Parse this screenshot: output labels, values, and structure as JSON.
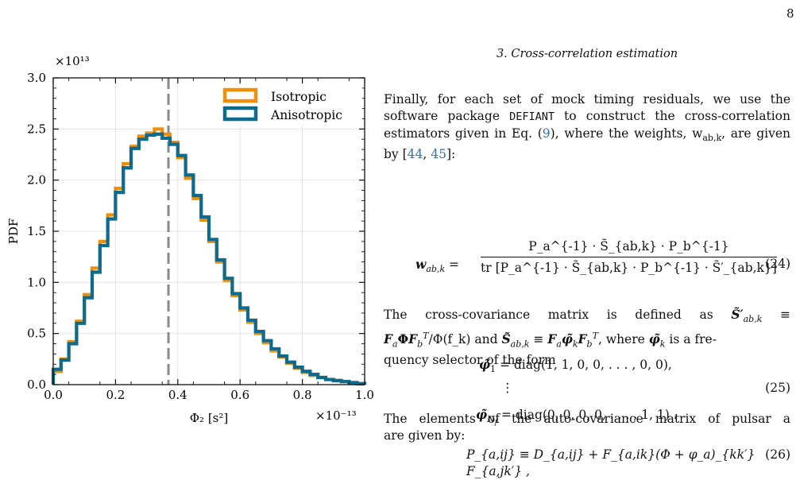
{
  "page_number": "8",
  "section_title": "3.   Cross-correlation estimation",
  "para1": {
    "text_a": "Finally, for each set of mock timing residuals, we use the software package ",
    "code": "DEFIANT",
    "text_b": " to construct the cross-correlation estimators given in Eq. (",
    "eq_ref": "9",
    "text_c": "), where the weights, w",
    "weights_sub": "ab,k",
    "text_d": ", are given by [",
    "cite1": "44",
    "cite2": "45",
    "text_e": "]:"
  },
  "eq24": {
    "lhs": "w",
    "lhs_sub": "ab,k",
    "numerator": "P_a^{-1} · S̃_{ab,k} · P_b^{-1}",
    "denominator": "tr [P_a^{-1} · S̃_{ab,k} · P_b^{-1} · S̃′_{ab,k}]",
    "number": "(24)"
  },
  "para2": {
    "line1": "The cross-covariance matrix is defined as",
    "line2_a": "Φ(f_k) and",
    "line2_b": "where",
    "line2_c": "is a fre-",
    "line3": "quency selector of the form"
  },
  "eq25": {
    "line1": "diag(1, 1, 0, 0, . . . , 0, 0),",
    "line2": "⋮",
    "line3": "diag(0, 0, 0, 0, . . . , 1, 1) .",
    "number": "(25)"
  },
  "para3": {
    "line1": "The elements of the auto-covariance matrix of pulsar a",
    "line2": "are given by:"
  },
  "eq26": {
    "body": "P_{a,ij} ≡ D_{a,ij} + F_{a,ik}(Φ + φ_a)_{kk′} F_{a,jk′} ,",
    "number": "(26)"
  },
  "chart_data": {
    "type": "line",
    "xlabel": "Φ₂ [s²]",
    "ylabel": "PDF",
    "x_multiplier": "×10⁻¹³",
    "y_multiplier": "×10¹³",
    "xlim": [
      0.0,
      1.0
    ],
    "ylim": [
      0.0,
      3.0
    ],
    "x_ticks": [
      "0.0",
      "0.2",
      "0.4",
      "0.6",
      "0.8",
      "1.0"
    ],
    "y_ticks": [
      "0.0",
      "0.5",
      "1.0",
      "1.5",
      "2.0",
      "2.5",
      "3.0"
    ],
    "grid": true,
    "legend_position": "top-right",
    "vline": {
      "x": 0.37,
      "color": "#8a8a8a",
      "style": "dashed"
    },
    "step_width": 0.025,
    "series": [
      {
        "name": "Isotropic",
        "color": "#f0900a",
        "x": [
          0.0,
          0.025,
          0.05,
          0.075,
          0.1,
          0.125,
          0.15,
          0.175,
          0.2,
          0.225,
          0.25,
          0.275,
          0.3,
          0.325,
          0.35,
          0.375,
          0.4,
          0.425,
          0.45,
          0.475,
          0.5,
          0.525,
          0.55,
          0.575,
          0.6,
          0.625,
          0.65,
          0.675,
          0.7,
          0.725,
          0.75,
          0.775,
          0.8,
          0.825,
          0.85,
          0.875,
          0.9,
          0.925,
          0.95,
          0.975
        ],
        "values": [
          0.13,
          0.25,
          0.42,
          0.62,
          0.88,
          1.14,
          1.4,
          1.66,
          1.92,
          2.16,
          2.33,
          2.43,
          2.46,
          2.5,
          2.45,
          2.37,
          2.22,
          2.02,
          1.82,
          1.61,
          1.4,
          1.2,
          1.02,
          0.87,
          0.73,
          0.61,
          0.5,
          0.41,
          0.33,
          0.27,
          0.21,
          0.16,
          0.12,
          0.09,
          0.07,
          0.05,
          0.04,
          0.03,
          0.02,
          0.01
        ]
      },
      {
        "name": "Anisotropic",
        "color": "#0e6b8e",
        "x": [
          0.0,
          0.025,
          0.05,
          0.075,
          0.1,
          0.125,
          0.15,
          0.175,
          0.2,
          0.225,
          0.25,
          0.275,
          0.3,
          0.325,
          0.35,
          0.375,
          0.4,
          0.425,
          0.45,
          0.475,
          0.5,
          0.525,
          0.55,
          0.575,
          0.6,
          0.625,
          0.65,
          0.675,
          0.7,
          0.725,
          0.75,
          0.775,
          0.8,
          0.825,
          0.85,
          0.875,
          0.9,
          0.925,
          0.95,
          0.975
        ],
        "values": [
          0.15,
          0.24,
          0.4,
          0.6,
          0.85,
          1.1,
          1.36,
          1.62,
          1.88,
          2.12,
          2.31,
          2.4,
          2.44,
          2.45,
          2.41,
          2.35,
          2.24,
          2.05,
          1.85,
          1.64,
          1.42,
          1.22,
          1.04,
          0.89,
          0.75,
          0.63,
          0.52,
          0.43,
          0.35,
          0.28,
          0.22,
          0.17,
          0.13,
          0.1,
          0.07,
          0.05,
          0.04,
          0.03,
          0.02,
          0.01
        ]
      }
    ]
  }
}
